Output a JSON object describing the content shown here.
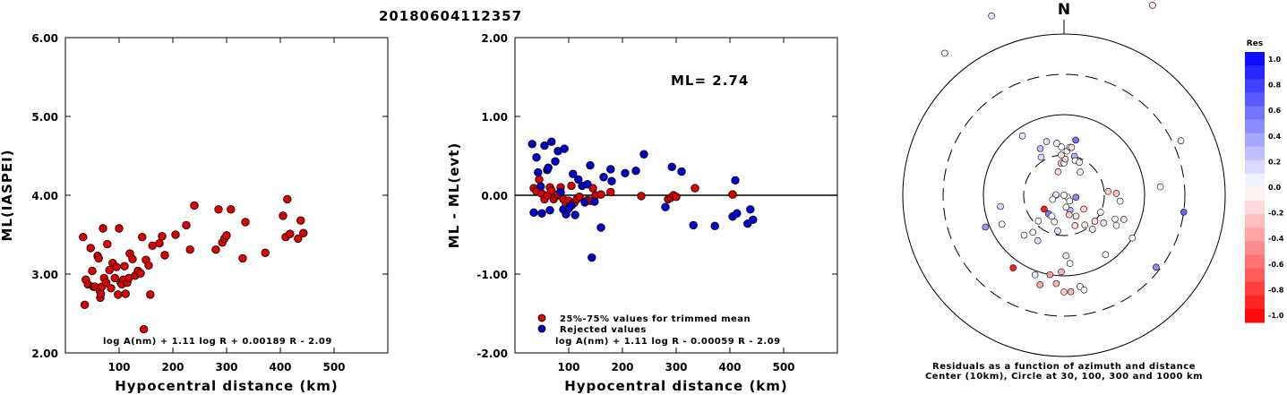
{
  "title": "20180604112357",
  "chart_data": [
    {
      "type": "scatter",
      "xlabel": "Hypocentral distance (km)",
      "ylabel": "ML(IASPEI)",
      "xlim": [
        0,
        600
      ],
      "ylim": [
        2.0,
        6.0
      ],
      "x_ticks": [
        "100",
        "200",
        "300",
        "400",
        "500"
      ],
      "y_ticks": [
        "2.00",
        "3.00",
        "4.00",
        "5.00",
        "6.00"
      ],
      "formula": "log A(nm) + 1.11 log R + 0.00189 R - 2.09",
      "marker_color": "#dd0000",
      "points": [
        [
          33,
          3.47
        ],
        [
          36,
          2.61
        ],
        [
          38,
          2.93
        ],
        [
          42,
          2.87
        ],
        [
          47,
          3.33
        ],
        [
          50,
          3.04
        ],
        [
          52,
          2.84
        ],
        [
          55,
          2.84
        ],
        [
          60,
          3.23
        ],
        [
          62,
          3.2
        ],
        [
          64,
          2.79
        ],
        [
          65,
          2.7
        ],
        [
          66,
          2.75
        ],
        [
          68,
          2.84
        ],
        [
          70,
          3.58
        ],
        [
          72,
          2.95
        ],
        [
          76,
          2.89
        ],
        [
          78,
          3.38
        ],
        [
          82,
          3.05
        ],
        [
          85,
          2.82
        ],
        [
          88,
          3.14
        ],
        [
          92,
          2.95
        ],
        [
          95,
          3.09
        ],
        [
          98,
          2.74
        ],
        [
          100,
          3.58
        ],
        [
          103,
          2.89
        ],
        [
          105,
          2.87
        ],
        [
          108,
          2.93
        ],
        [
          110,
          3.1
        ],
        [
          112,
          2.75
        ],
        [
          115,
          2.89
        ],
        [
          118,
          2.95
        ],
        [
          120,
          3.26
        ],
        [
          125,
          3.19
        ],
        [
          130,
          2.98
        ],
        [
          135,
          3.04
        ],
        [
          140,
          3.01
        ],
        [
          143,
          3.47
        ],
        [
          146,
          2.3
        ],
        [
          150,
          3.18
        ],
        [
          155,
          3.11
        ],
        [
          158,
          2.74
        ],
        [
          162,
          3.36
        ],
        [
          175,
          3.39
        ],
        [
          180,
          3.48
        ],
        [
          185,
          3.24
        ],
        [
          205,
          3.5
        ],
        [
          225,
          3.62
        ],
        [
          232,
          3.31
        ],
        [
          240,
          3.87
        ],
        [
          280,
          3.31
        ],
        [
          285,
          3.82
        ],
        [
          292,
          3.4
        ],
        [
          296,
          3.45
        ],
        [
          300,
          3.49
        ],
        [
          308,
          3.82
        ],
        [
          330,
          3.2
        ],
        [
          335,
          3.66
        ],
        [
          372,
          3.27
        ],
        [
          405,
          3.74
        ],
        [
          410,
          3.47
        ],
        [
          413,
          3.95
        ],
        [
          418,
          3.51
        ],
        [
          433,
          3.45
        ],
        [
          438,
          3.68
        ],
        [
          443,
          3.52
        ]
      ]
    },
    {
      "type": "scatter",
      "xlabel": "Hypocentral distance (km)",
      "ylabel": "ML - ML(evt)",
      "xlim": [
        0,
        600
      ],
      "ylim": [
        -2.0,
        2.0
      ],
      "x_ticks": [
        "100",
        "200",
        "300",
        "400",
        "500"
      ],
      "y_ticks": [
        "-2.00",
        "-1.00",
        "0.00",
        "1.00",
        "2.00"
      ],
      "annotation": "ML= 2.74",
      "formula": "log A(nm) + 1.11 log R - 0.00059 R - 2.09",
      "legend": [
        {
          "label": "25%-75% values for trimmed mean",
          "color": "#dd0000"
        },
        {
          "label": "Rejected values",
          "color": "#0000cc"
        }
      ],
      "series": [
        {
          "name": "25%-75% values for trimmed mean",
          "color": "#dd0000",
          "points": [
            [
              35,
              0.09
            ],
            [
              40,
              0.05
            ],
            [
              45,
              0.2
            ],
            [
              50,
              0.02
            ],
            [
              55,
              -0.05
            ],
            [
              60,
              0.0
            ],
            [
              65,
              0.1
            ],
            [
              68,
              0.06
            ],
            [
              72,
              -0.05
            ],
            [
              75,
              -0.02
            ],
            [
              80,
              0.01
            ],
            [
              85,
              0.1
            ],
            [
              90,
              -0.05
            ],
            [
              95,
              -0.12
            ],
            [
              100,
              -0.07
            ],
            [
              105,
              0.12
            ],
            [
              110,
              -0.1
            ],
            [
              115,
              -0.05
            ],
            [
              120,
              -0.02
            ],
            [
              130,
              -0.08
            ],
            [
              135,
              -0.06
            ],
            [
              140,
              -0.07
            ],
            [
              145,
              0.09
            ],
            [
              150,
              0.0
            ],
            [
              160,
              0.01
            ],
            [
              178,
              0.04
            ],
            [
              235,
              -0.01
            ],
            [
              285,
              -0.05
            ],
            [
              290,
              -0.03
            ],
            [
              295,
              0.0
            ],
            [
              300,
              -0.02
            ],
            [
              335,
              0.09
            ],
            [
              405,
              0.01
            ]
          ]
        },
        {
          "name": "Rejected values",
          "color": "#0000cc",
          "points": [
            [
              32,
              0.65
            ],
            [
              35,
              -0.22
            ],
            [
              40,
              0.48
            ],
            [
              43,
              0.29
            ],
            [
              48,
              0.11
            ],
            [
              50,
              -0.23
            ],
            [
              55,
              0.63
            ],
            [
              60,
              0.32
            ],
            [
              62,
              0.35
            ],
            [
              65,
              -0.19
            ],
            [
              68,
              0.68
            ],
            [
              75,
              0.43
            ],
            [
              80,
              0.56
            ],
            [
              85,
              0.04
            ],
            [
              90,
              -0.18
            ],
            [
              92,
              0.59
            ],
            [
              95,
              -0.24
            ],
            [
              100,
              -0.17
            ],
            [
              105,
              -0.13
            ],
            [
              108,
              0.27
            ],
            [
              112,
              -0.25
            ],
            [
              118,
              0.2
            ],
            [
              125,
              0.12
            ],
            [
              130,
              -0.09
            ],
            [
              135,
              0.14
            ],
            [
              140,
              0.38
            ],
            [
              143,
              -0.79
            ],
            [
              148,
              -0.08
            ],
            [
              160,
              -0.41
            ],
            [
              165,
              0.23
            ],
            [
              178,
              0.33
            ],
            [
              180,
              0.18
            ],
            [
              205,
              0.28
            ],
            [
              225,
              0.31
            ],
            [
              240,
              0.52
            ],
            [
              280,
              -0.15
            ],
            [
              292,
              0.36
            ],
            [
              310,
              0.3
            ],
            [
              332,
              -0.38
            ],
            [
              372,
              -0.39
            ],
            [
              405,
              -0.27
            ],
            [
              410,
              0.19
            ],
            [
              413,
              -0.23
            ],
            [
              433,
              -0.36
            ],
            [
              438,
              -0.18
            ],
            [
              443,
              -0.31
            ]
          ]
        }
      ]
    },
    {
      "type": "polar-scatter",
      "north_label": "N",
      "caption_line1": "Residuals as a function of azimuth and distance",
      "caption_line2": "Center (10km), Circle at 30, 100, 300 and 1000 km",
      "colorbar_title": "Res",
      "colorbar_ticks": [
        "1.0",
        "0.8",
        "0.6",
        "0.4",
        "0.2",
        "0.0",
        "-0.2",
        "-0.4",
        "-0.6",
        "-0.8",
        "-1.0"
      ],
      "colorbar_range": [
        -1.0,
        1.0
      ],
      "points": [
        [
          -40,
          3.3,
          -0.05
        ],
        [
          -22,
          3.4,
          0.1
        ],
        [
          -5,
          3.8,
          -0.2
        ],
        [
          6,
          3.8,
          0.35
        ],
        [
          25,
          3.6,
          -0.1
        ],
        [
          -35,
          1.9,
          0.1
        ],
        [
          -31,
          1.55,
          0.15
        ],
        [
          -27,
          1.65,
          0.25
        ],
        [
          -18,
          1.7,
          0.12
        ],
        [
          -8,
          1.65,
          0.05
        ],
        [
          -14,
          1.3,
          -0.15
        ],
        [
          -5,
          1.4,
          -0.25
        ],
        [
          -3,
          1.6,
          0.0
        ],
        [
          0,
          1.4,
          0.0
        ],
        [
          2,
          1.45,
          -0.2
        ],
        [
          4,
          1.55,
          0.0
        ],
        [
          7,
          1.6,
          0.05
        ],
        [
          9,
          1.6,
          -0.1
        ],
        [
          12,
          1.7,
          0.55
        ],
        [
          15,
          1.5,
          0.3
        ],
        [
          18,
          1.45,
          0.0
        ],
        [
          25,
          1.45,
          0.0
        ],
        [
          35,
          1.35,
          -0.05
        ],
        [
          -90,
          1.1,
          0.2
        ],
        [
          -86,
          1.1,
          0.1
        ],
        [
          -80,
          0.85,
          0.45
        ],
        [
          -60,
          0.95,
          0.0
        ],
        [
          70,
          1.0,
          0.35
        ],
        [
          85,
          1.55,
          -0.2
        ],
        [
          88,
          1.65,
          -0.25
        ],
        [
          96,
          1.7,
          0.05
        ],
        [
          115,
          1.5,
          0.0
        ],
        [
          112,
          1.8,
          -0.1
        ],
        [
          125,
          1.3,
          -0.2
        ],
        [
          130,
          1.5,
          -0.15
        ],
        [
          120,
          1.75,
          0.0
        ],
        [
          65,
          2.6,
          0.05
        ],
        [
          85,
          2.2,
          0.0
        ],
        [
          98,
          2.5,
          0.6
        ],
        [
          122,
          2.0,
          0.0
        ],
        [
          140,
          1.55,
          0.05
        ],
        [
          145,
          1.45,
          -0.1
        ],
        [
          150,
          1.3,
          -0.1
        ],
        [
          158,
          1.2,
          0.3
        ],
        [
          160,
          1.4,
          -0.15
        ],
        [
          165,
          1.25,
          -0.2
        ],
        [
          170,
          1.15,
          0.0
        ],
        [
          -170,
          1.45,
          0.1
        ],
        [
          -160,
          1.35,
          0.0
        ],
        [
          -150,
          1.65,
          0.1
        ],
        [
          -140,
          1.3,
          0.5
        ],
        [
          -135,
          1.7,
          0.0
        ],
        [
          -125,
          1.3,
          -0.9
        ],
        [
          -115,
          1.85,
          0.0
        ],
        [
          -112,
          2.05,
          0.4
        ],
        [
          -145,
          2.1,
          -0.9
        ],
        [
          -100,
          1.8,
          0.15
        ],
        [
          -110,
          1.15,
          0.0
        ],
        [
          128,
          2.45,
          0.45
        ],
        [
          145,
          1.9,
          -0.05
        ],
        [
          170,
          2.15,
          0.0
        ],
        [
          175,
          1.85,
          0.0
        ],
        [
          178,
          1.75,
          0.05
        ],
        [
          -178,
          1.95,
          -0.3
        ],
        [
          -175,
          2.1,
          -0.3
        ],
        [
          -170,
          2.0,
          -0.4
        ],
        [
          -165,
          2.15,
          -0.35
        ],
        [
          -160,
          2.05,
          0.1
        ],
        [
          180,
          2.2,
          -0.2
        ],
        [
          176,
          2.2,
          -0.3
        ],
        [
          168,
          2.2,
          0.0
        ],
        [
          -8,
          1.0,
          0.0
        ],
        [
          135,
          1.1,
          0.0
        ],
        [
          -140,
          1.6,
          0.0
        ],
        [
          -135,
          1.45,
          0.0
        ],
        [
          -150,
          1.3,
          0.0
        ],
        [
          115,
          1.7,
          0.0
        ],
        [
          125,
          1.6,
          0.1
        ],
        [
          -4,
          1.5,
          -0.1
        ]
      ]
    }
  ]
}
